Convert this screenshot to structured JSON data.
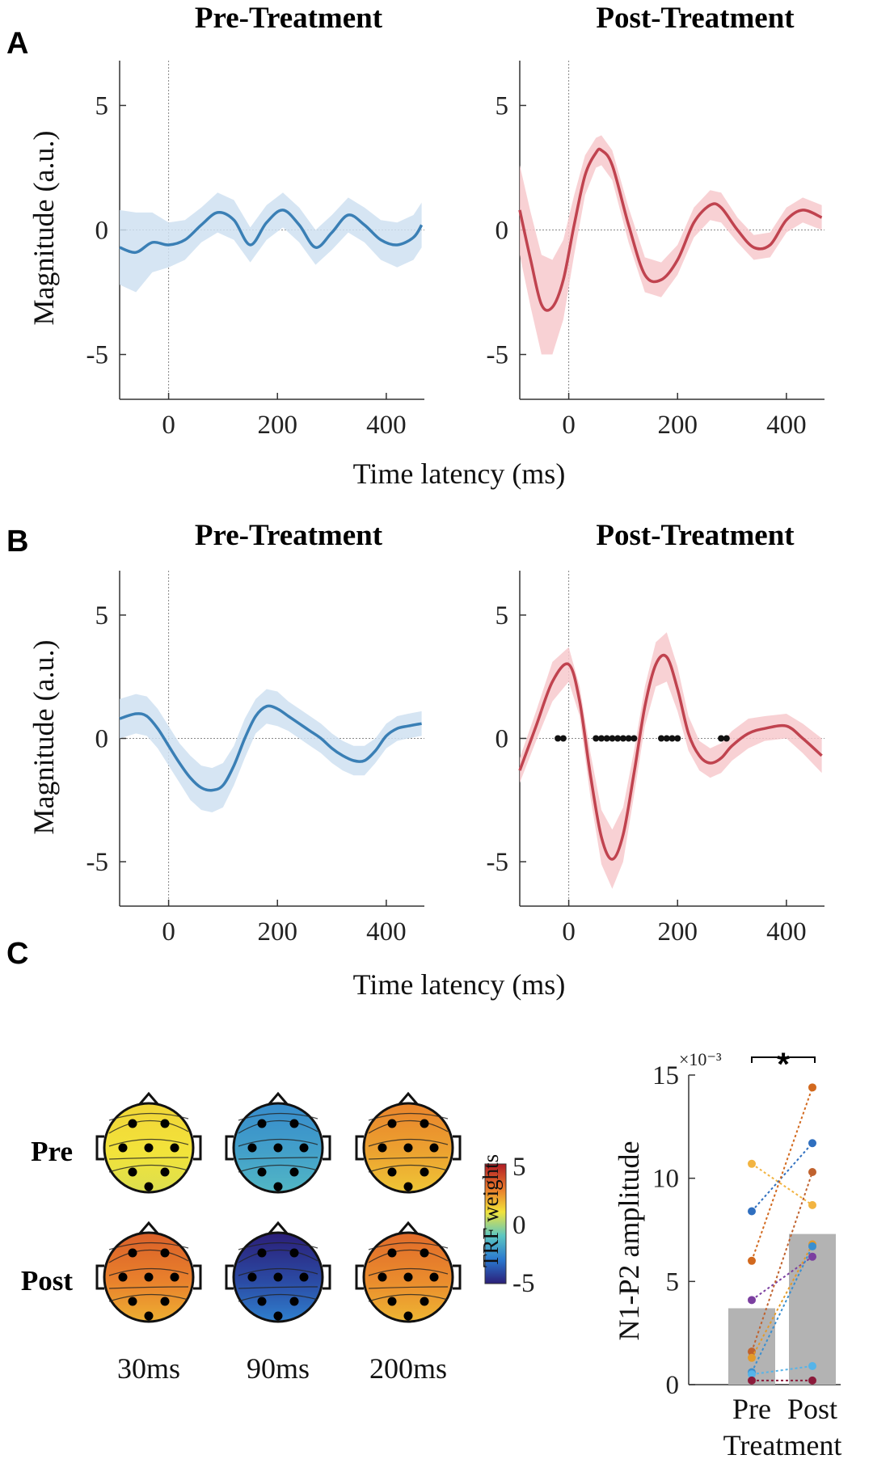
{
  "figure": {
    "panel_labels": [
      "A",
      "B",
      "C"
    ],
    "colors": {
      "pre": "#3A7FB5",
      "pre_band": "#CFE0F1",
      "post": "#C0434F",
      "post_band": "#F7C9CC",
      "bar": "#B3B3B3"
    }
  },
  "chart_data": [
    {
      "panel": "A",
      "type": "line",
      "title": "Pre-Treatment",
      "xlabel": "Time latency (ms)",
      "ylabel": "Magnitude (a.u.)",
      "xlim": [
        -90,
        470
      ],
      "ylim": [
        -6.8,
        6.8
      ],
      "xticks": [
        0,
        200,
        400
      ],
      "yticks": [
        -5,
        0,
        5
      ],
      "ytick_labels": [
        "-5",
        "0",
        "5"
      ],
      "series": [
        {
          "x": [
            -90,
            -60,
            -30,
            0,
            30,
            60,
            90,
            120,
            150,
            180,
            210,
            240,
            270,
            300,
            330,
            360,
            390,
            420,
            450,
            465
          ],
          "y": [
            -0.7,
            -0.9,
            -0.5,
            -0.6,
            -0.4,
            0.2,
            0.7,
            0.4,
            -0.6,
            0.3,
            0.8,
            0.2,
            -0.7,
            -0.1,
            0.6,
            0.2,
            -0.4,
            -0.6,
            -0.3,
            0.2
          ],
          "band": [
            1.5,
            1.6,
            1.2,
            0.9,
            0.8,
            0.7,
            0.8,
            0.8,
            0.7,
            0.7,
            0.7,
            0.7,
            0.7,
            0.7,
            0.7,
            0.7,
            0.8,
            0.9,
            0.9,
            0.9
          ]
        }
      ]
    },
    {
      "panel": "A",
      "type": "line",
      "title": "Post-Treatment",
      "xlabel": "",
      "ylabel": "",
      "xlim": [
        -90,
        470
      ],
      "ylim": [
        -6.8,
        6.8
      ],
      "xticks": [
        0,
        200,
        400
      ],
      "yticks": [
        -5,
        0,
        5
      ],
      "ytick_labels": [
        "-5",
        "0",
        "5"
      ],
      "series": [
        {
          "x": [
            -90,
            -70,
            -50,
            -30,
            -10,
            10,
            30,
            50,
            60,
            80,
            110,
            140,
            170,
            200,
            230,
            260,
            280,
            310,
            340,
            370,
            400,
            430,
            465
          ],
          "y": [
            0.8,
            -1.2,
            -3.0,
            -3.1,
            -2.0,
            0.2,
            2.2,
            3.1,
            3.2,
            2.6,
            0.2,
            -1.8,
            -2.0,
            -1.2,
            0.3,
            1.0,
            0.9,
            0.0,
            -0.7,
            -0.6,
            0.4,
            0.8,
            0.5
          ],
          "band": [
            1.8,
            1.9,
            2.0,
            1.9,
            1.6,
            1.2,
            0.8,
            0.6,
            0.6,
            0.6,
            0.7,
            0.7,
            0.7,
            0.6,
            0.6,
            0.6,
            0.6,
            0.5,
            0.5,
            0.5,
            0.5,
            0.5,
            0.5
          ]
        }
      ]
    },
    {
      "panel": "B",
      "type": "line",
      "title": "Pre-Treatment",
      "xlabel": "Time latency (ms)",
      "ylabel": "Magnitude (a.u.)",
      "xlim": [
        -90,
        470
      ],
      "ylim": [
        -6.8,
        6.8
      ],
      "xticks": [
        0,
        200,
        400
      ],
      "yticks": [
        -5,
        0,
        5
      ],
      "ytick_labels": [
        "-5",
        "0",
        "5"
      ],
      "series": [
        {
          "x": [
            -90,
            -60,
            -40,
            -20,
            0,
            20,
            40,
            60,
            80,
            100,
            120,
            140,
            160,
            180,
            200,
            220,
            240,
            260,
            280,
            300,
            320,
            340,
            360,
            380,
            400,
            420,
            440,
            465
          ],
          "y": [
            0.8,
            1.0,
            0.9,
            0.4,
            -0.3,
            -1.0,
            -1.6,
            -2.0,
            -2.1,
            -1.9,
            -1.1,
            0.0,
            0.9,
            1.3,
            1.2,
            0.9,
            0.6,
            0.3,
            0.0,
            -0.4,
            -0.7,
            -0.9,
            -0.9,
            -0.5,
            0.1,
            0.4,
            0.5,
            0.6
          ],
          "band": [
            0.8,
            0.8,
            0.8,
            0.8,
            0.8,
            0.8,
            0.9,
            0.9,
            0.9,
            0.9,
            0.8,
            0.8,
            0.7,
            0.7,
            0.7,
            0.6,
            0.6,
            0.6,
            0.6,
            0.6,
            0.6,
            0.6,
            0.6,
            0.5,
            0.5,
            0.5,
            0.5,
            0.5
          ]
        }
      ]
    },
    {
      "panel": "B",
      "type": "line",
      "title": "Post-Treatment",
      "xlabel": "",
      "ylabel": "",
      "xlim": [
        -90,
        470
      ],
      "ylim": [
        -6.8,
        6.8
      ],
      "xticks": [
        0,
        200,
        400
      ],
      "yticks": [
        -5,
        0,
        5
      ],
      "ytick_labels": [
        "-5",
        "0",
        "5"
      ],
      "series": [
        {
          "x": [
            -90,
            -60,
            -30,
            0,
            20,
            40,
            60,
            80,
            100,
            120,
            140,
            160,
            180,
            200,
            220,
            240,
            260,
            280,
            300,
            330,
            360,
            400,
            430,
            465
          ],
          "y": [
            -1.3,
            0.5,
            2.3,
            3.0,
            1.5,
            -1.5,
            -4.0,
            -4.9,
            -3.9,
            -1.4,
            1.3,
            3.0,
            3.3,
            2.0,
            0.2,
            -0.7,
            -1.0,
            -0.8,
            -0.3,
            0.2,
            0.4,
            0.5,
            0.0,
            -0.7
          ],
          "band": [
            0.5,
            0.6,
            0.8,
            0.7,
            0.6,
            0.9,
            1.1,
            1.2,
            1.1,
            0.9,
            0.8,
            0.9,
            1.0,
            0.9,
            0.7,
            0.6,
            0.6,
            0.6,
            0.6,
            0.6,
            0.5,
            0.5,
            0.6,
            0.7
          ]
        }
      ],
      "significance_markers_ms": [
        -20,
        -10,
        50,
        60,
        70,
        80,
        90,
        100,
        110,
        120,
        170,
        180,
        190,
        200,
        280,
        290
      ]
    },
    {
      "panel": "C",
      "type": "heatmap",
      "title": "",
      "row_labels": [
        "Pre",
        "Post"
      ],
      "col_labels": [
        "30ms",
        "90ms",
        "200ms"
      ],
      "colorbar": {
        "label": "TRF weights",
        "ticks": [
          5,
          0,
          -5
        ]
      },
      "values": [
        [
          1.0,
          -2.0,
          2.2
        ],
        [
          2.8,
          -4.0,
          2.6
        ]
      ]
    },
    {
      "panel": "C",
      "type": "bar",
      "title": "",
      "categories": [
        "Pre",
        "Post"
      ],
      "xlabel": "Treatment",
      "ylabel": "N1-P2 amplitude",
      "ylim": [
        0,
        15
      ],
      "yticks": [
        0,
        5,
        10,
        15
      ],
      "ytick_labels": [
        "0",
        "5",
        "10",
        "15"
      ],
      "scale_label": "×10⁻³",
      "significance": "*",
      "values": [
        3.7,
        7.3
      ],
      "subjects": [
        {
          "pre": 10.7,
          "post": 8.7,
          "color": "#F2B441"
        },
        {
          "pre": 8.4,
          "post": 11.7,
          "color": "#2F6FBF"
        },
        {
          "pre": 6.0,
          "post": 14.4,
          "color": "#D2691E"
        },
        {
          "pre": 4.1,
          "post": 6.2,
          "color": "#7B3FA0"
        },
        {
          "pre": 1.6,
          "post": 10.3,
          "color": "#C0622E"
        },
        {
          "pre": 1.3,
          "post": 6.8,
          "color": "#E39A2B"
        },
        {
          "pre": 0.6,
          "post": 6.7,
          "color": "#3A8FD0"
        },
        {
          "pre": 0.5,
          "post": 0.9,
          "color": "#56B4E9"
        },
        {
          "pre": 0.2,
          "post": 0.2,
          "color": "#8B1A3A"
        }
      ]
    }
  ]
}
